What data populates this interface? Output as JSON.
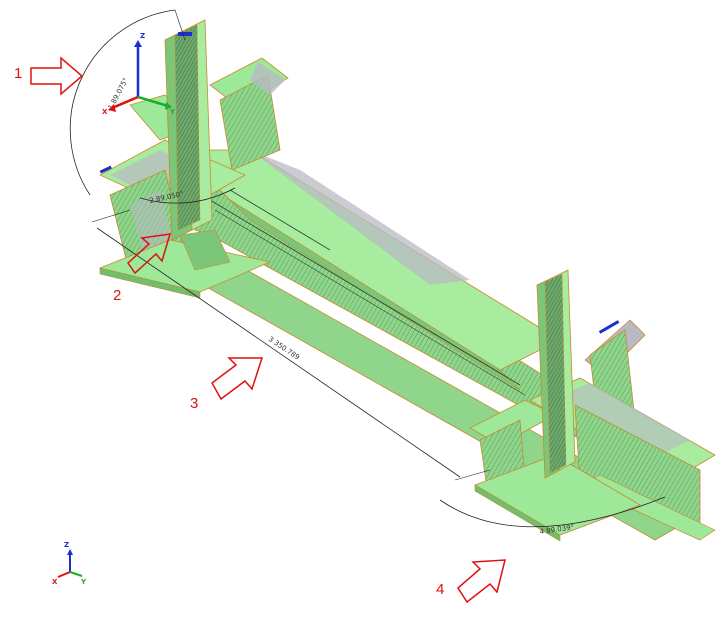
{
  "callouts": [
    {
      "label": "1"
    },
    {
      "label": "2"
    },
    {
      "label": "3"
    },
    {
      "label": "4"
    }
  ],
  "dimensions": {
    "angle_top": "1 89.075°",
    "angle_small": "2 89.050°",
    "length": "3 350.789",
    "angle_bottom": "4 89.039°"
  },
  "axis_triad": {
    "x": "X",
    "y": "Y",
    "z": "Z"
  },
  "colors": {
    "accent": "#e01010",
    "steel": "#9ee89a",
    "steel_dark": "#6fbf6c",
    "steel_shadow": "#4f8f56",
    "gray_face": "#b9b9c4",
    "edge": "#c98a2e",
    "axis_x": "#e01010",
    "axis_y": "#1cae2a",
    "axis_z": "#1a2fd0"
  }
}
